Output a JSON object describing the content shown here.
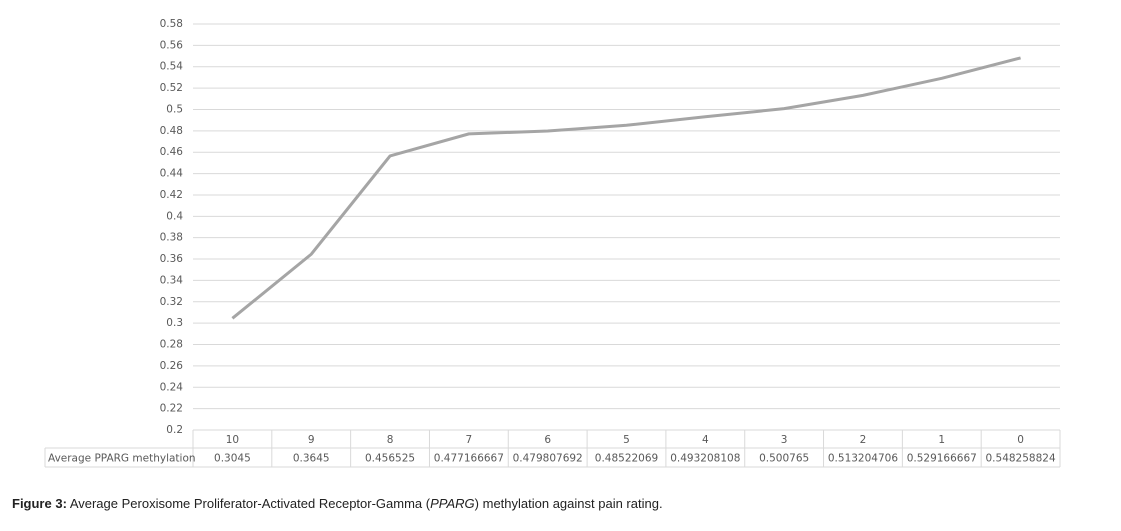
{
  "chart_data": {
    "type": "line",
    "categories": [
      "10",
      "9",
      "8",
      "7",
      "6",
      "5",
      "4",
      "3",
      "2",
      "1",
      "0"
    ],
    "series": [
      {
        "name": "Average PPARG methylation",
        "color": "#a5a5a5",
        "values": [
          0.3045,
          0.3645,
          0.456525,
          0.477166667,
          0.479807692,
          0.48522069,
          0.493208108,
          0.500765,
          0.513204706,
          0.529166667,
          0.548258824
        ]
      }
    ],
    "ylim": [
      0.2,
      0.58
    ],
    "yticks": [
      0.2,
      0.22,
      0.24,
      0.26,
      0.28,
      0.3,
      0.32,
      0.34,
      0.36,
      0.38,
      0.4,
      0.42,
      0.44,
      0.46,
      0.48,
      0.5,
      0.52,
      0.54,
      0.56,
      0.58
    ],
    "grid": true
  },
  "caption": {
    "label": "Figure 3:",
    "parts": [
      "Average Peroxisome Proliferator-Activated Receptor-Gamma (",
      "PPARG",
      ") methylation against pain rating."
    ]
  }
}
